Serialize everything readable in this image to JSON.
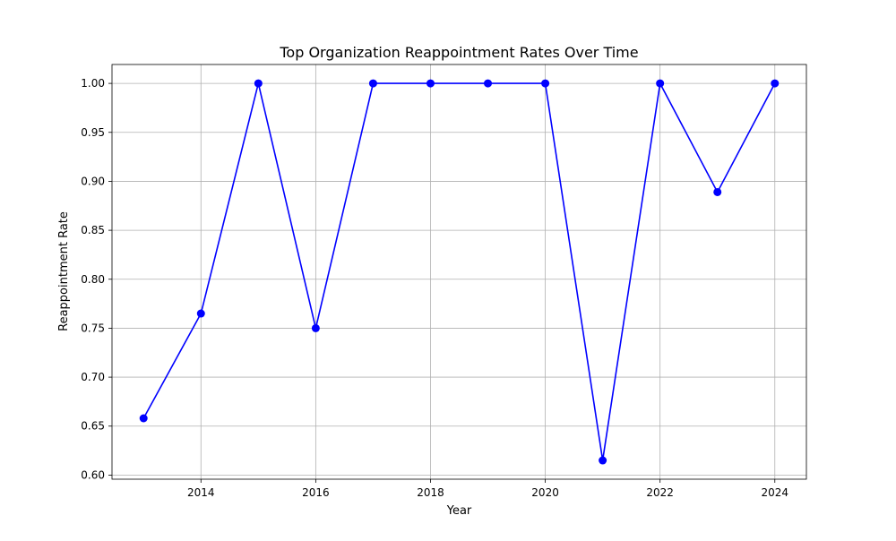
{
  "chart_data": {
    "type": "line",
    "title": "Top Organization Reappointment Rates Over Time",
    "xlabel": "Year",
    "ylabel": "Reappointment Rate",
    "x": [
      2013,
      2014,
      2015,
      2016,
      2017,
      2018,
      2019,
      2020,
      2021,
      2022,
      2023,
      2024
    ],
    "series": [
      {
        "values": [
          0.658,
          0.765,
          1.0,
          0.75,
          1.0,
          1.0,
          1.0,
          1.0,
          0.615,
          1.0,
          0.889,
          1.0
        ],
        "color": "#0000ff",
        "marker": "circle"
      }
    ],
    "xlim": [
      2012.45,
      2024.55
    ],
    "ylim": [
      0.5958,
      1.0193
    ],
    "xticks": [
      "2014",
      "2016",
      "2018",
      "2020",
      "2022",
      "2024"
    ],
    "yticks": [
      "0.60",
      "0.65",
      "0.70",
      "0.75",
      "0.80",
      "0.85",
      "0.90",
      "0.95",
      "1.00"
    ],
    "grid": true,
    "legend": false
  }
}
